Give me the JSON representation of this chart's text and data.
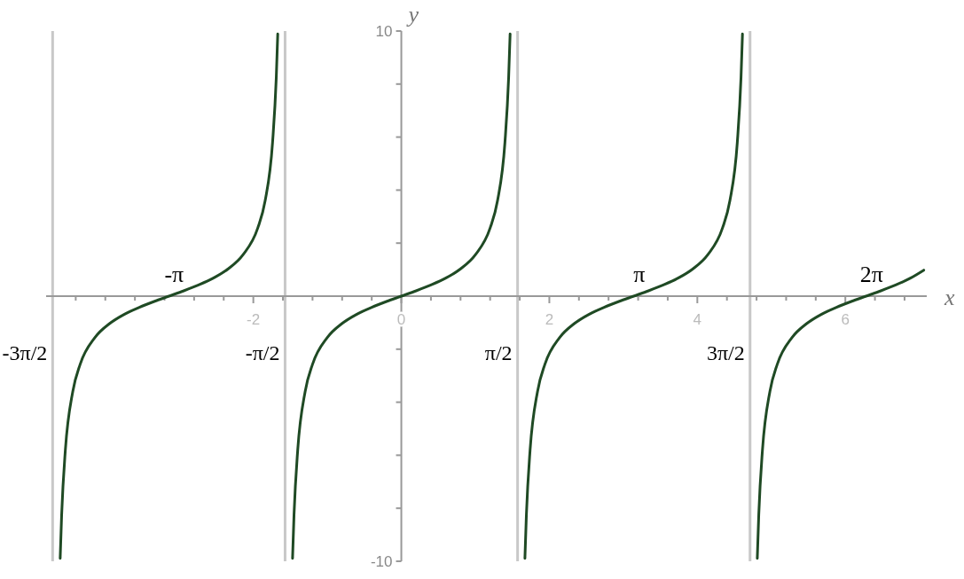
{
  "chart_data": {
    "type": "line",
    "xlabel": "x",
    "ylabel": "y",
    "xlim": [
      -4.8,
      7.1
    ],
    "ylim": [
      -10,
      10
    ],
    "xticks": [
      {
        "value": -4.4,
        "label": null
      },
      {
        "value": -4,
        "label": null
      },
      {
        "value": -3.6,
        "label": null
      },
      {
        "value": -3.2,
        "label": null
      },
      {
        "value": -2.8,
        "label": null
      },
      {
        "value": -2.4,
        "label": null
      },
      -2,
      {
        "value": -1.6,
        "label": null
      },
      {
        "value": -1.2,
        "label": null
      },
      {
        "value": -0.8,
        "label": null
      },
      {
        "value": -0.4,
        "label": null
      },
      0,
      {
        "value": 0.4,
        "label": null
      },
      {
        "value": 0.8,
        "label": null
      },
      {
        "value": 1.2,
        "label": null
      },
      {
        "value": 1.6,
        "label": null
      },
      2,
      {
        "value": 2.4,
        "label": null
      },
      {
        "value": 2.8,
        "label": null
      },
      {
        "value": 3.2,
        "label": null
      },
      {
        "value": 3.6,
        "label": null
      },
      4,
      {
        "value": 4.4,
        "label": null
      },
      {
        "value": 4.8,
        "label": null
      },
      {
        "value": 5.2,
        "label": null
      },
      {
        "value": 5.6,
        "label": null
      },
      6,
      {
        "value": 6.4,
        "label": null
      },
      {
        "value": 6.8,
        "label": null
      }
    ],
    "yticks": [
      -10,
      {
        "value": -8,
        "label": null
      },
      {
        "value": -6,
        "label": null
      },
      {
        "value": -4,
        "label": null
      },
      {
        "value": -2,
        "label": null
      },
      {
        "value": 2,
        "label": null
      },
      {
        "value": 4,
        "label": null
      },
      {
        "value": 6,
        "label": null
      },
      {
        "value": 8,
        "label": null
      },
      10
    ],
    "grid": false,
    "marker": "none",
    "line_style": "solid",
    "series": [
      {
        "color": "#1f4a24",
        "x": [
          -4.61,
          -4.59,
          -4.54,
          -4.44,
          -4.34,
          -4.14,
          -3.94,
          -3.74,
          -3.54,
          -3.34,
          -3.14,
          -2.94,
          -2.74,
          -2.54,
          -2.34,
          -2.14,
          -1.94,
          -1.84,
          -1.74,
          -1.69,
          -1.67
        ],
        "values": [
          -9.89,
          -8.24,
          -5.8,
          -3.6,
          -2.57,
          -1.56,
          -1.03,
          -0.68,
          -0.42,
          -0.2,
          0,
          0.2,
          0.42,
          0.68,
          1.03,
          1.56,
          2.57,
          3.6,
          5.8,
          8.24,
          9.89
        ]
      },
      {
        "color": "#1f4a24",
        "x": [
          -1.47,
          -1.45,
          -1.4,
          -1.3,
          -1.2,
          -1.0,
          -0.8,
          -0.6,
          -0.4,
          -0.2,
          0,
          0.2,
          0.4,
          0.6,
          0.8,
          1.0,
          1.2,
          1.3,
          1.4,
          1.45,
          1.47
        ],
        "values": [
          -9.89,
          -8.24,
          -5.8,
          -3.6,
          -2.57,
          -1.56,
          -1.03,
          -0.68,
          -0.42,
          -0.2,
          0,
          0.2,
          0.42,
          0.68,
          1.03,
          1.56,
          2.57,
          3.6,
          5.8,
          8.24,
          9.89
        ]
      },
      {
        "color": "#1f4a24",
        "x": [
          1.67,
          1.69,
          1.74,
          1.84,
          1.94,
          2.14,
          2.34,
          2.54,
          2.74,
          2.94,
          3.14,
          3.34,
          3.54,
          3.74,
          3.94,
          4.14,
          4.34,
          4.44,
          4.54,
          4.59,
          4.61
        ],
        "values": [
          -9.89,
          -8.24,
          -5.8,
          -3.6,
          -2.57,
          -1.56,
          -1.03,
          -0.68,
          -0.42,
          -0.2,
          0,
          0.2,
          0.42,
          0.68,
          1.03,
          1.56,
          2.57,
          3.6,
          5.8,
          8.24,
          9.89
        ]
      },
      {
        "color": "#1f4a24",
        "x": [
          4.81,
          4.83,
          4.88,
          4.98,
          5.08,
          5.28,
          5.48,
          5.68,
          5.88,
          6.08,
          6.28,
          6.48,
          6.68,
          6.88,
          7.06
        ],
        "values": [
          -9.89,
          -8.24,
          -5.8,
          -3.6,
          -2.57,
          -1.56,
          -1.03,
          -0.68,
          -0.42,
          -0.2,
          0,
          0.2,
          0.42,
          0.68,
          0.98
        ]
      }
    ],
    "ref_lines": [
      {
        "axis": "x",
        "value": -4.712,
        "label": "-3π/2",
        "color": "#c8c8c8"
      },
      {
        "axis": "x",
        "value": -1.571,
        "label": "-π/2",
        "color": "#c8c8c8"
      },
      {
        "axis": "x",
        "value": 1.571,
        "label": "π/2",
        "color": "#c8c8c8"
      },
      {
        "axis": "x",
        "value": 4.712,
        "label": "3π/2",
        "color": "#c8c8c8"
      }
    ],
    "annotations": [
      {
        "text": "-π",
        "x": -3.142,
        "y": 0
      },
      {
        "text": "π",
        "x": 3.142,
        "y": 0
      },
      {
        "text": "2π",
        "x": 6.283,
        "y": 0
      }
    ]
  }
}
